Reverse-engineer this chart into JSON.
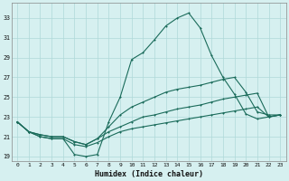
{
  "xlabel": "Humidex (Indice chaleur)",
  "background_color": "#d6f0f0",
  "line_color": "#1a6b5a",
  "x_values": [
    0,
    1,
    2,
    3,
    4,
    5,
    6,
    7,
    8,
    9,
    10,
    11,
    12,
    13,
    14,
    15,
    16,
    17,
    18,
    19,
    20,
    21,
    22,
    23
  ],
  "main_line": [
    22.5,
    21.5,
    21.0,
    20.8,
    20.8,
    19.2,
    19.0,
    19.2,
    22.5,
    25.0,
    28.8,
    29.5,
    30.8,
    32.2,
    33.0,
    33.5,
    32.0,
    29.2,
    27.0,
    25.3,
    23.3,
    22.8,
    23.0,
    23.2
  ],
  "upper_line": [
    22.5,
    21.5,
    21.2,
    21.0,
    21.0,
    20.5,
    20.2,
    20.8,
    22.0,
    23.2,
    24.0,
    24.5,
    25.0,
    25.5,
    25.8,
    26.0,
    26.2,
    26.5,
    26.8,
    27.0,
    25.5,
    23.5,
    23.2,
    23.2
  ],
  "mid_line": [
    22.5,
    21.5,
    21.2,
    21.0,
    21.0,
    20.5,
    20.2,
    20.8,
    21.5,
    22.0,
    22.5,
    23.0,
    23.2,
    23.5,
    23.8,
    24.0,
    24.2,
    24.5,
    24.8,
    25.0,
    25.2,
    25.4,
    23.0,
    23.2
  ],
  "lower_line": [
    22.5,
    21.5,
    21.0,
    20.8,
    20.8,
    20.2,
    20.0,
    20.4,
    21.0,
    21.5,
    21.8,
    22.0,
    22.2,
    22.4,
    22.6,
    22.8,
    23.0,
    23.2,
    23.4,
    23.6,
    23.8,
    24.0,
    23.0,
    23.2
  ],
  "ylim": [
    18.5,
    34.5
  ],
  "xlim": [
    -0.5,
    23.5
  ],
  "yticks": [
    19,
    21,
    23,
    25,
    27,
    29,
    31,
    33
  ],
  "xticks": [
    0,
    1,
    2,
    3,
    4,
    5,
    6,
    7,
    8,
    9,
    10,
    11,
    12,
    13,
    14,
    15,
    16,
    17,
    18,
    19,
    20,
    21,
    22,
    23
  ],
  "grid_color": "#afd8d8",
  "markersize": 2.0,
  "linewidth": 0.8
}
